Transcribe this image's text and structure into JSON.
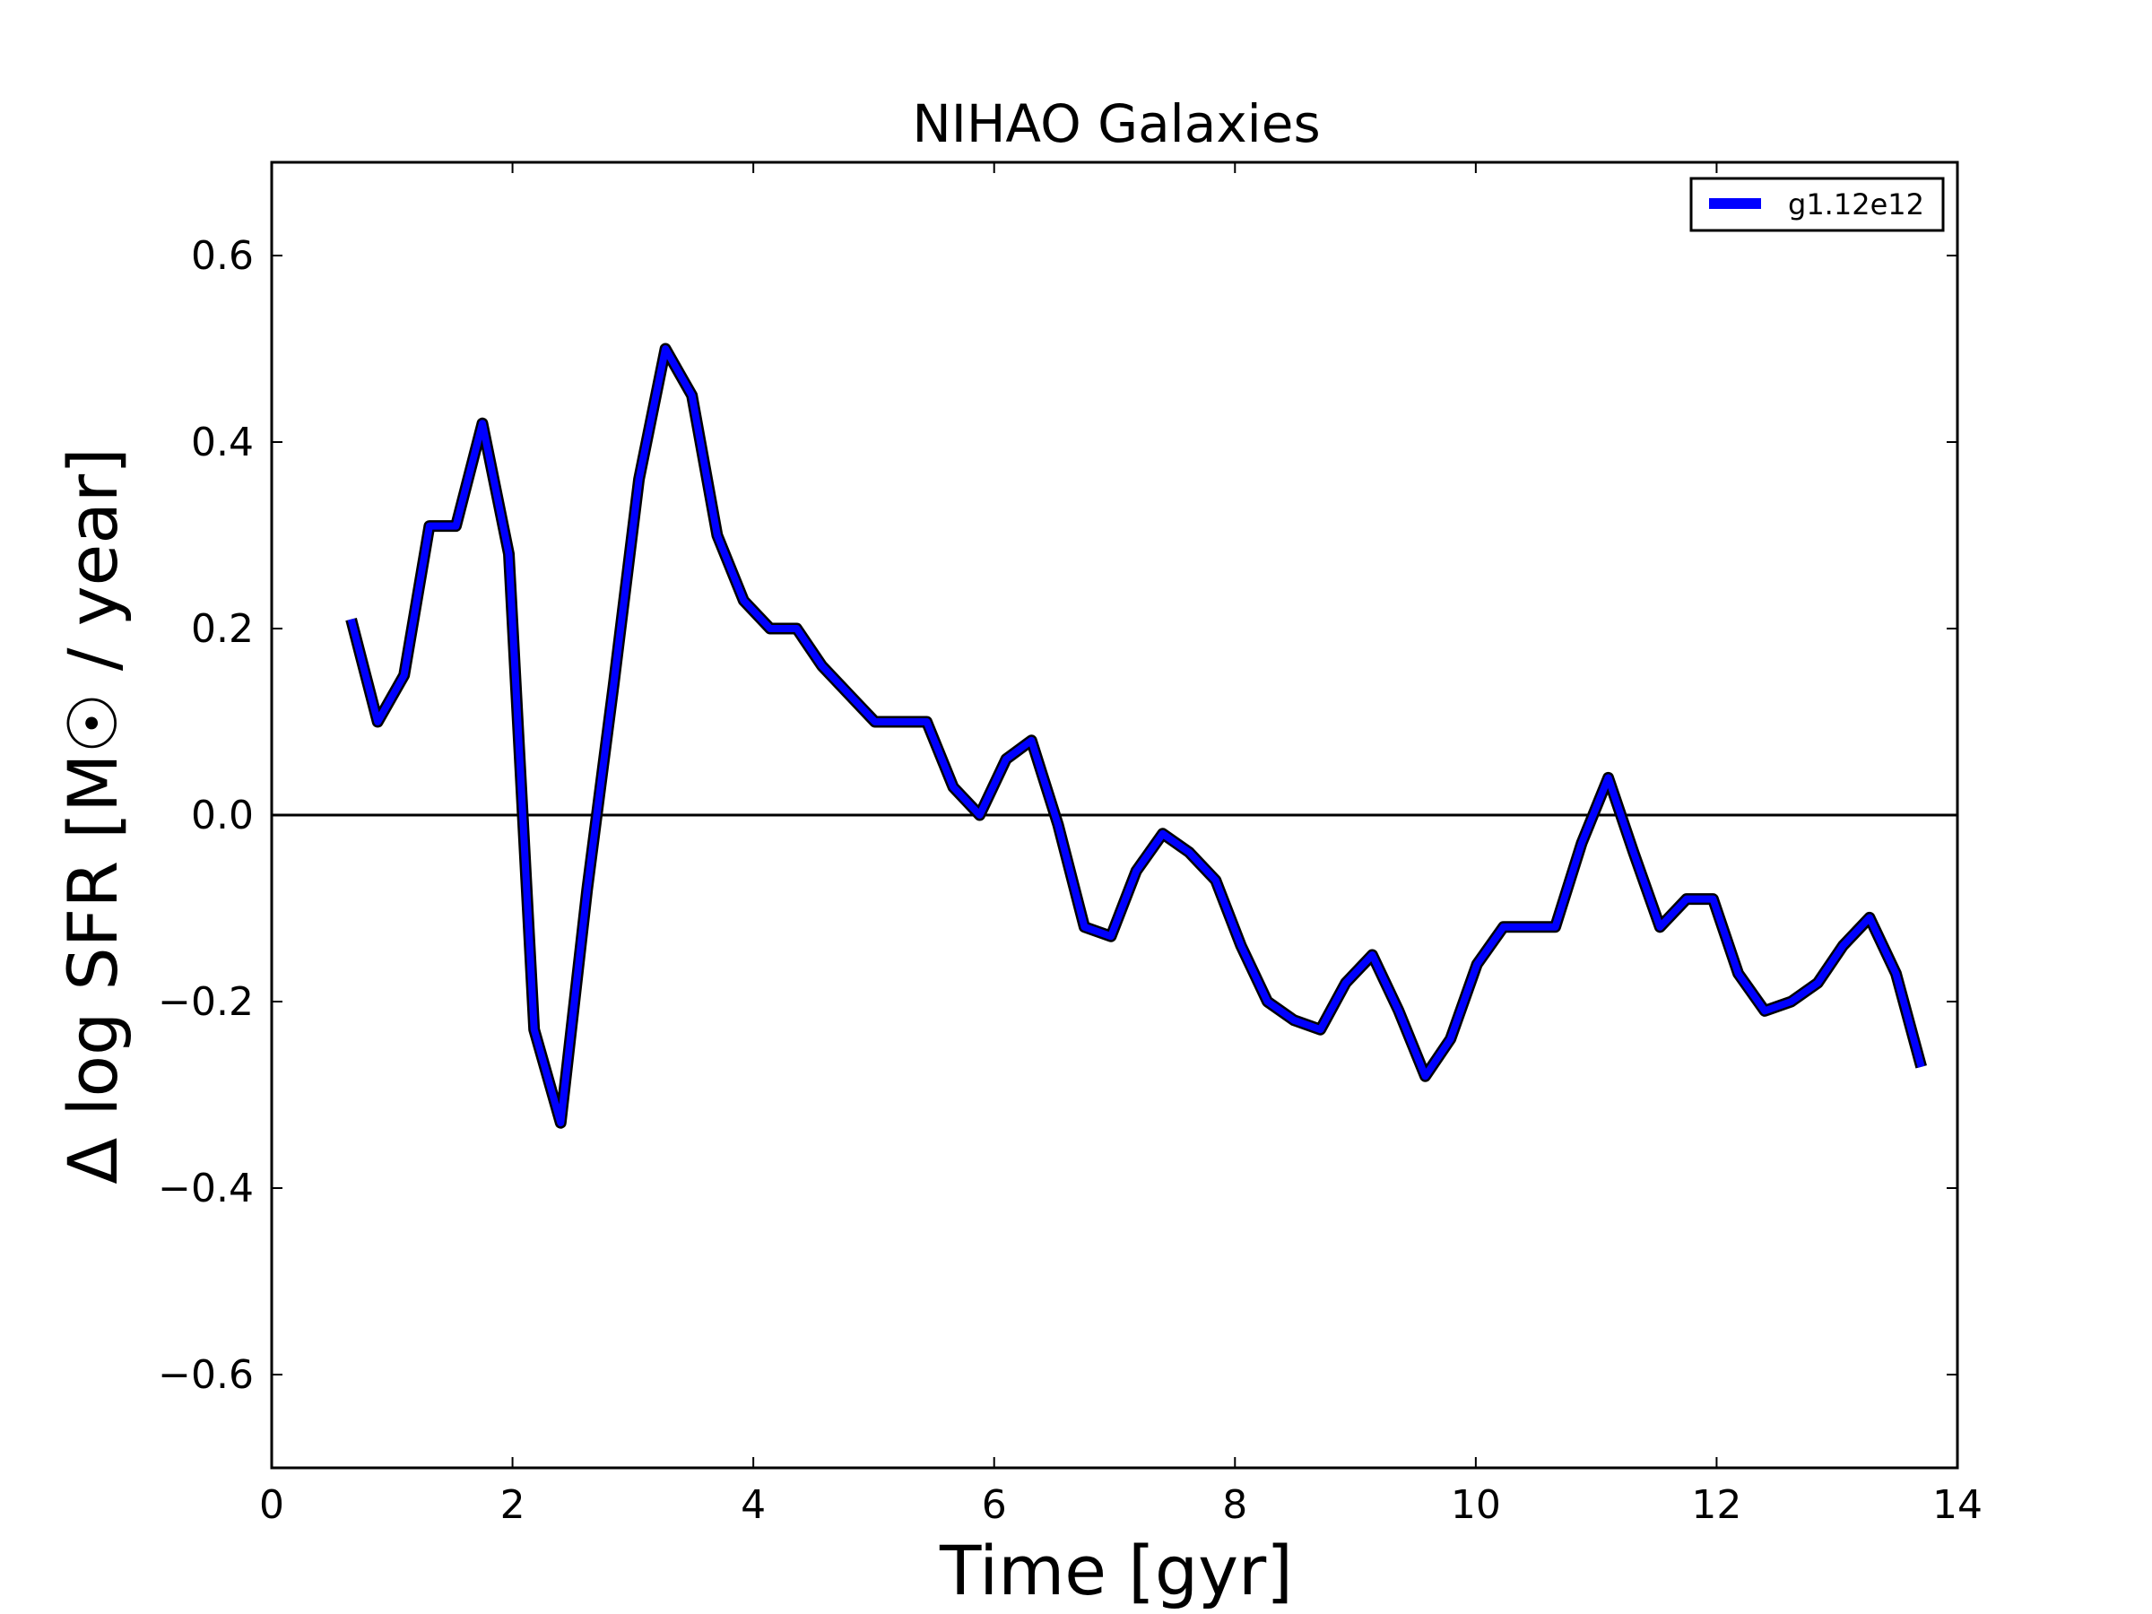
{
  "chart_data": {
    "type": "line",
    "title": "NIHAO Galaxies",
    "xlabel": "Time [gyr]",
    "ylabel": "Δ log SFR [M☉ / year]",
    "xlim": [
      0,
      14
    ],
    "ylim": [
      -0.7,
      0.7
    ],
    "xticks": [
      0,
      2,
      4,
      6,
      8,
      10,
      12,
      14
    ],
    "xtick_labels": [
      "0",
      "2",
      "4",
      "6",
      "8",
      "10",
      "12",
      "14"
    ],
    "yticks": [
      -0.6,
      -0.4,
      -0.2,
      0.0,
      0.2,
      0.4,
      0.6
    ],
    "ytick_labels": [
      "−0.6",
      "−0.4",
      "−0.2",
      "0.0",
      "0.2",
      "0.4",
      "0.6"
    ],
    "grid": false,
    "legend_position": "top-right",
    "reference_line": {
      "y": 0.0,
      "color": "#000000"
    },
    "series": [
      {
        "name": "g1.12e12",
        "color": "#0000ff",
        "x": [
          0.66,
          0.88,
          1.1,
          1.31,
          1.53,
          1.75,
          1.97,
          2.18,
          2.4,
          2.62,
          2.84,
          3.05,
          3.27,
          3.49,
          3.7,
          3.92,
          4.14,
          4.36,
          4.57,
          4.79,
          5.01,
          5.23,
          5.44,
          5.66,
          5.88,
          6.1,
          6.31,
          6.53,
          6.75,
          6.97,
          7.18,
          7.4,
          7.62,
          7.84,
          8.05,
          8.27,
          8.49,
          8.71,
          8.92,
          9.14,
          9.36,
          9.58,
          9.79,
          10.01,
          10.23,
          10.44,
          10.66,
          10.88,
          11.1,
          11.31,
          11.53,
          11.75,
          11.97,
          12.18,
          12.4,
          12.62,
          12.84,
          13.05,
          13.27,
          13.49,
          13.7
        ],
        "y": [
          0.21,
          0.1,
          0.15,
          0.31,
          0.31,
          0.42,
          0.28,
          -0.23,
          -0.33,
          -0.08,
          0.14,
          0.36,
          0.5,
          0.45,
          0.3,
          0.23,
          0.2,
          0.2,
          0.16,
          0.13,
          0.1,
          0.1,
          0.1,
          0.03,
          0.0,
          0.06,
          0.08,
          -0.01,
          -0.12,
          -0.13,
          -0.06,
          -0.02,
          -0.04,
          -0.07,
          -0.14,
          -0.2,
          -0.22,
          -0.23,
          -0.18,
          -0.15,
          -0.21,
          -0.28,
          -0.24,
          -0.16,
          -0.12,
          -0.12,
          -0.12,
          -0.03,
          0.04,
          -0.04,
          -0.12,
          -0.09,
          -0.09,
          -0.17,
          -0.21,
          -0.2,
          -0.18,
          -0.14,
          -0.11,
          -0.17,
          -0.27
        ]
      }
    ]
  }
}
